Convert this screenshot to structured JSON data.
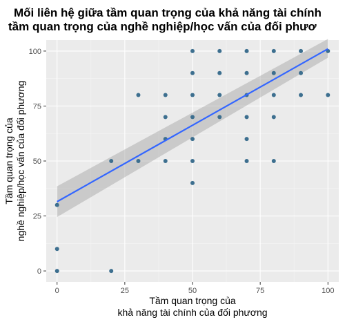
{
  "chart_data": {
    "type": "scatter",
    "title": [
      "Mối liên hệ giữa tầm quan trọng của khả năng tài chính",
      "tầm quan trọng của nghề nghiệp/học vấn của đối phươ"
    ],
    "xlabel": [
      "Tầm quan trọng của",
      "khả năng tài chính của đối phương"
    ],
    "ylabel": [
      "Tầm quan trọng của",
      "nghề nghiệp/học vấn của đối phương"
    ],
    "xlim": [
      -4,
      104
    ],
    "ylim": [
      -5,
      105
    ],
    "xticks": [
      0,
      25,
      50,
      75,
      100
    ],
    "yticks": [
      0,
      25,
      50,
      75,
      100
    ],
    "grid": true,
    "point_color": "#3d6f8f",
    "fit": {
      "method": "linear",
      "color": "#3366ff",
      "x": [
        0,
        100
      ],
      "y": [
        31.5,
        101
      ],
      "ci_lower": [
        24.5,
        97
      ],
      "ci_upper": [
        38.5,
        105.5
      ],
      "band_color": "#999999"
    },
    "points": [
      {
        "x": 0,
        "y": 0
      },
      {
        "x": 0,
        "y": 10
      },
      {
        "x": 0,
        "y": 30
      },
      {
        "x": 20,
        "y": 0
      },
      {
        "x": 20,
        "y": 50
      },
      {
        "x": 30,
        "y": 50
      },
      {
        "x": 30,
        "y": 80
      },
      {
        "x": 40,
        "y": 50
      },
      {
        "x": 40,
        "y": 60
      },
      {
        "x": 40,
        "y": 70
      },
      {
        "x": 40,
        "y": 80
      },
      {
        "x": 50,
        "y": 40
      },
      {
        "x": 50,
        "y": 50
      },
      {
        "x": 50,
        "y": 60
      },
      {
        "x": 50,
        "y": 70
      },
      {
        "x": 50,
        "y": 80
      },
      {
        "x": 50,
        "y": 90
      },
      {
        "x": 50,
        "y": 100
      },
      {
        "x": 60,
        "y": 70
      },
      {
        "x": 60,
        "y": 80
      },
      {
        "x": 60,
        "y": 90
      },
      {
        "x": 60,
        "y": 100
      },
      {
        "x": 70,
        "y": 50
      },
      {
        "x": 70,
        "y": 60
      },
      {
        "x": 70,
        "y": 70
      },
      {
        "x": 70,
        "y": 80
      },
      {
        "x": 70,
        "y": 90
      },
      {
        "x": 70,
        "y": 100
      },
      {
        "x": 80,
        "y": 50
      },
      {
        "x": 80,
        "y": 70
      },
      {
        "x": 80,
        "y": 80
      },
      {
        "x": 80,
        "y": 90
      },
      {
        "x": 80,
        "y": 100
      },
      {
        "x": 90,
        "y": 80
      },
      {
        "x": 90,
        "y": 90
      },
      {
        "x": 90,
        "y": 100
      },
      {
        "x": 100,
        "y": 80
      },
      {
        "x": 100,
        "y": 100
      }
    ]
  }
}
